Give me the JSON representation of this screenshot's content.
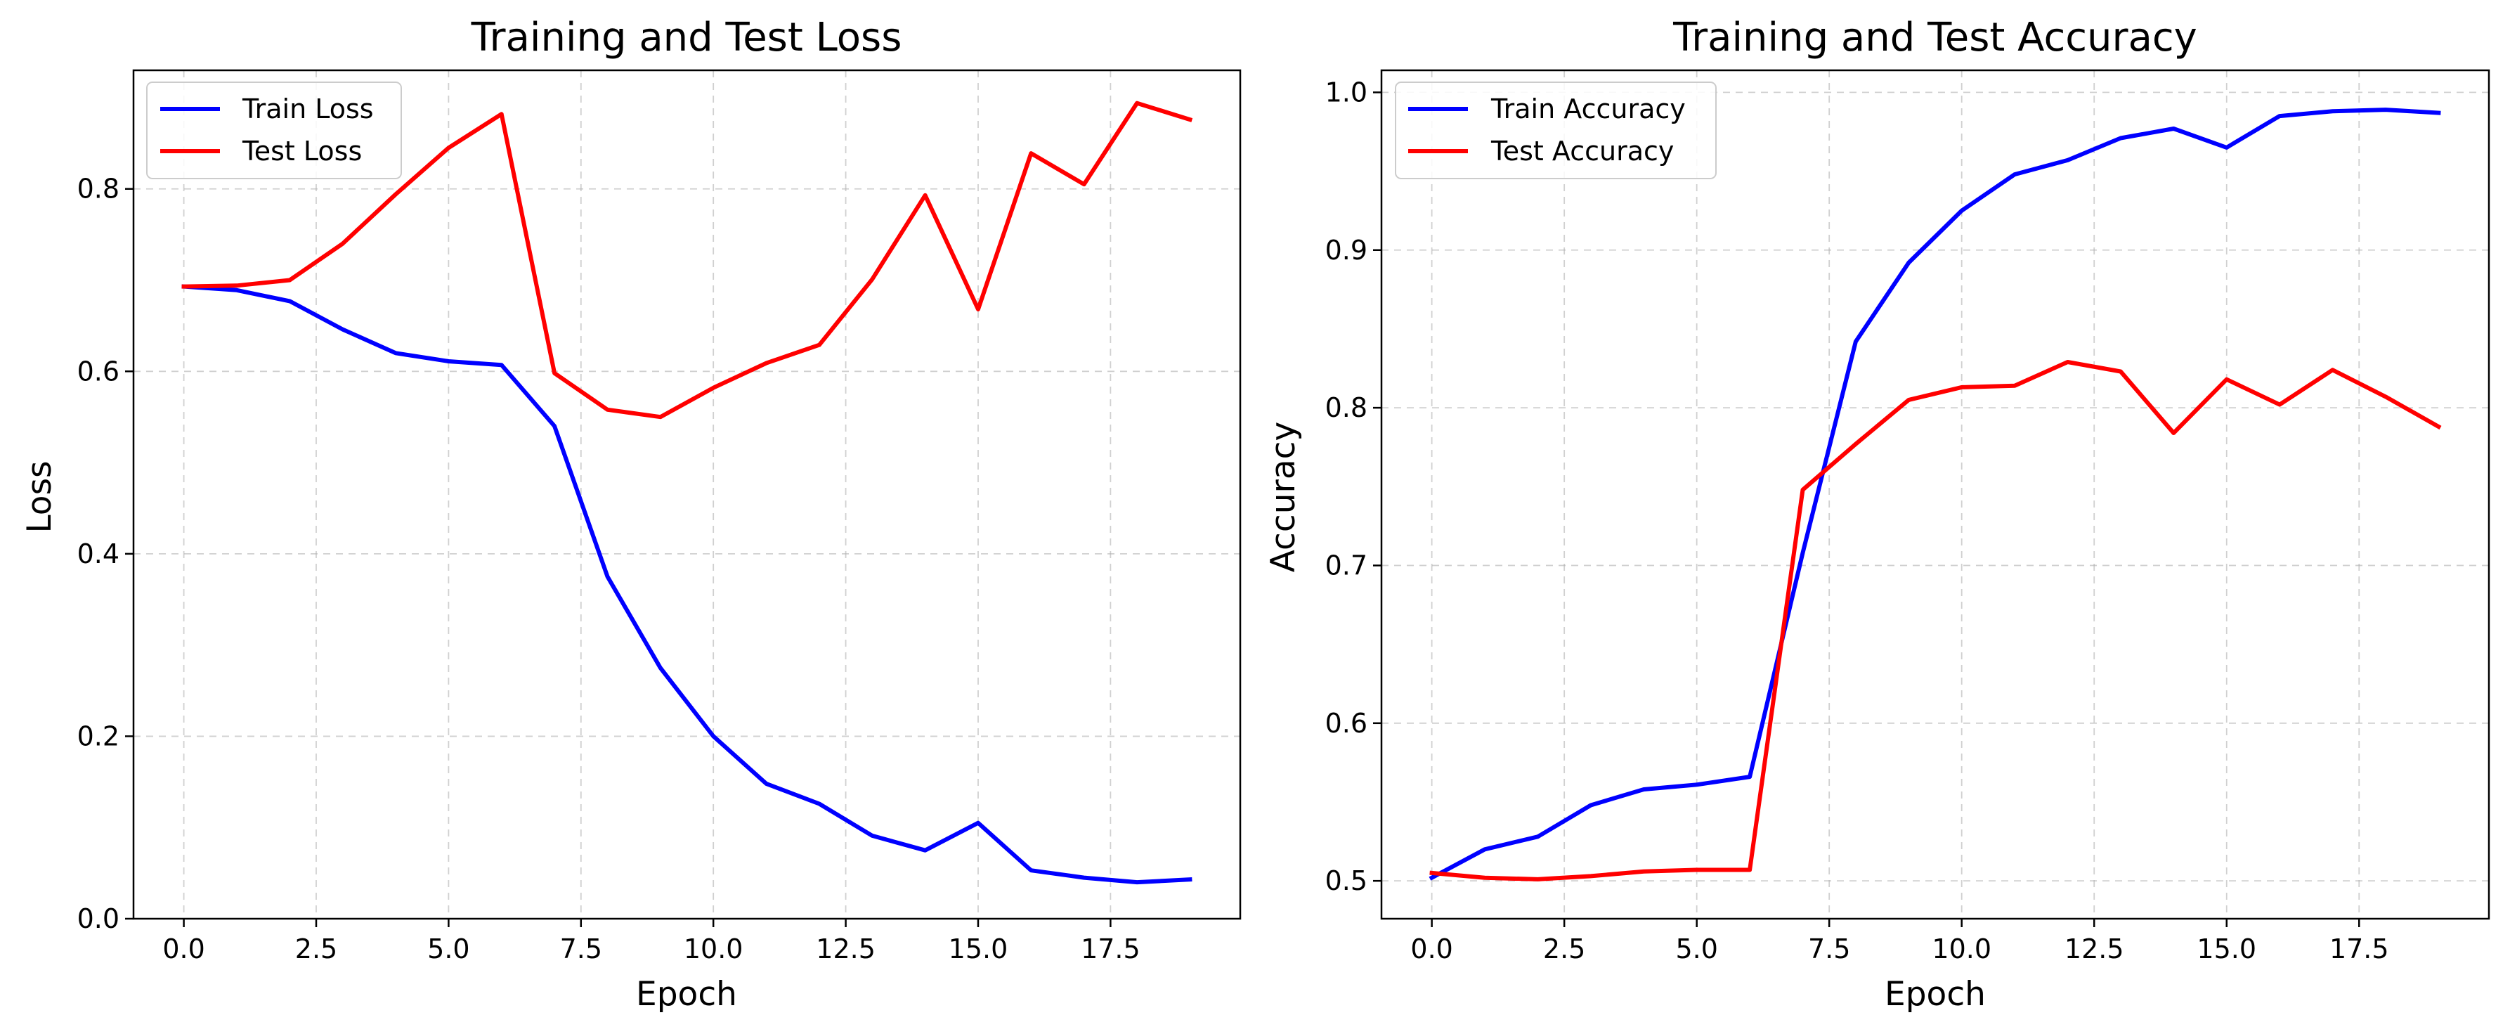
{
  "chart_data": [
    {
      "type": "line",
      "title": "Training and Test Loss",
      "xlabel": "Epoch",
      "ylabel": "Loss",
      "xlim": [
        -0.95,
        19.95
      ],
      "ylim": [
        0.0,
        0.93
      ],
      "xticks": [
        "0.0",
        "2.5",
        "5.0",
        "7.5",
        "10.0",
        "12.5",
        "15.0",
        "17.5"
      ],
      "xtick_values": [
        0,
        2.5,
        5,
        7.5,
        10,
        12.5,
        15,
        17.5
      ],
      "yticks": [
        "0.0",
        "0.2",
        "0.4",
        "0.6",
        "0.8"
      ],
      "ytick_values": [
        0.0,
        0.2,
        0.4,
        0.6,
        0.8
      ],
      "grid": true,
      "legend_position": "top-left",
      "x": [
        0,
        1,
        2,
        3,
        4,
        5,
        6,
        7,
        8,
        9,
        10,
        11,
        12,
        13,
        14,
        15,
        16,
        17,
        18,
        19
      ],
      "series": [
        {
          "name": "Train Loss",
          "color": "#0000ff",
          "values": [
            0.693,
            0.689,
            0.677,
            0.646,
            0.62,
            0.611,
            0.607,
            0.54,
            0.375,
            0.275,
            0.2,
            0.148,
            0.126,
            0.091,
            0.075,
            0.105,
            0.053,
            0.045,
            0.04,
            0.043
          ]
        },
        {
          "name": "Test Loss",
          "color": "#ff0000",
          "values": [
            0.693,
            0.694,
            0.7,
            0.74,
            0.794,
            0.845,
            0.882,
            0.598,
            0.558,
            0.55,
            0.582,
            0.609,
            0.629,
            0.701,
            0.793,
            0.668,
            0.839,
            0.805,
            0.894,
            0.876
          ]
        }
      ]
    },
    {
      "type": "line",
      "title": "Training and Test Accuracy",
      "xlabel": "Epoch",
      "ylabel": "Accuracy",
      "xlim": [
        -0.95,
        19.95
      ],
      "ylim": [
        0.476,
        1.014
      ],
      "xticks": [
        "0.0",
        "2.5",
        "5.0",
        "7.5",
        "10.0",
        "12.5",
        "15.0",
        "17.5"
      ],
      "xtick_values": [
        0,
        2.5,
        5,
        7.5,
        10,
        12.5,
        15,
        17.5
      ],
      "yticks": [
        "0.5",
        "0.6",
        "0.7",
        "0.8",
        "0.9",
        "1.0"
      ],
      "ytick_values": [
        0.5,
        0.6,
        0.7,
        0.8,
        0.9,
        1.0
      ],
      "grid": true,
      "legend_position": "top-left",
      "x": [
        0,
        1,
        2,
        3,
        4,
        5,
        6,
        7,
        8,
        9,
        10,
        11,
        12,
        13,
        14,
        15,
        16,
        17,
        18,
        19
      ],
      "series": [
        {
          "name": "Train Accuracy",
          "color": "#0000ff",
          "values": [
            0.502,
            0.52,
            0.528,
            0.548,
            0.558,
            0.561,
            0.566,
            0.708,
            0.842,
            0.892,
            0.925,
            0.948,
            0.957,
            0.971,
            0.977,
            0.965,
            0.985,
            0.988,
            0.989,
            0.987
          ]
        },
        {
          "name": "Test Accuracy",
          "color": "#ff0000",
          "values": [
            0.505,
            0.502,
            0.501,
            0.503,
            0.506,
            0.507,
            0.507,
            0.748,
            0.777,
            0.805,
            0.813,
            0.814,
            0.829,
            0.823,
            0.784,
            0.818,
            0.802,
            0.824,
            0.807,
            0.788
          ]
        }
      ]
    }
  ]
}
